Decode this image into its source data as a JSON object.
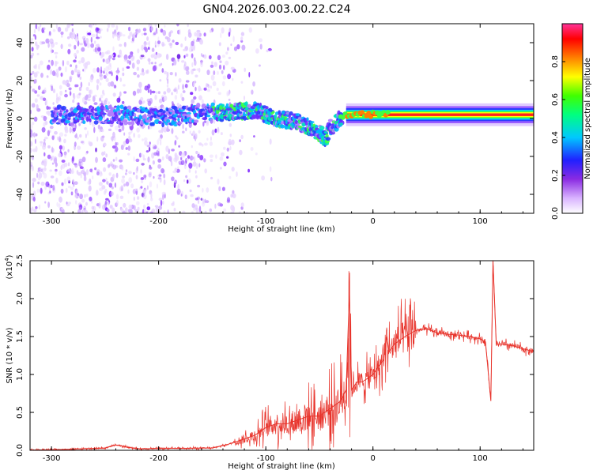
{
  "title": "GN04.2026.003.00.22.C24",
  "colors": {
    "snr_line": "#e8332b",
    "axis": "#000000"
  },
  "chart_data": [
    {
      "type": "heatmap",
      "name": "spectrogram",
      "xlabel": "Height of straight line (km)",
      "ylabel": "Frequency (Hz)",
      "xlim": [
        -320,
        150
      ],
      "ylim": [
        -50,
        50
      ],
      "xticks": [
        "-300",
        "-200",
        "-100",
        "0",
        "100"
      ],
      "xtick_values": [
        -300,
        -200,
        -100,
        0,
        100
      ],
      "yticks": [
        "-40",
        "-20",
        "0",
        "20",
        "40"
      ],
      "ytick_values": [
        -40,
        -20,
        0,
        20,
        40
      ],
      "colorbar": {
        "label": "Normalized spectral amplitude",
        "range": [
          0,
          1
        ],
        "ticks": [
          "0.0",
          "0.2",
          "0.4",
          "0.6",
          "0.8"
        ],
        "tick_values": [
          0,
          0.2,
          0.4,
          0.6,
          0.8
        ]
      },
      "features": {
        "noise_region_x": [
          -320,
          -130
        ],
        "noise_freq_span": [
          -50,
          50
        ],
        "carrier_trace": [
          [
            -290,
            1
          ],
          [
            -250,
            2
          ],
          [
            -200,
            1
          ],
          [
            -150,
            3
          ],
          [
            -110,
            4
          ],
          [
            -90,
            0
          ],
          [
            -70,
            -2
          ],
          [
            -55,
            -6
          ],
          [
            -45,
            -10
          ],
          [
            -40,
            -5
          ],
          [
            -30,
            1
          ],
          [
            -10,
            1
          ],
          [
            0,
            2
          ],
          [
            50,
            2
          ],
          [
            100,
            2
          ],
          [
            150,
            2
          ]
        ],
        "steady_carrier_x": [
          -30,
          150
        ],
        "steady_carrier_freq": 2
      }
    },
    {
      "type": "line",
      "name": "snr",
      "xlabel": "Height of straight line (km)",
      "ylabel": "SNR (10 * v/v)",
      "yscale_label": "(x10",
      "yscale_exp": "4",
      "yscale_close": ")",
      "xlim": [
        -320,
        150
      ],
      "ylim": [
        0,
        25000
      ],
      "xticks": [
        "-300",
        "-200",
        "-100",
        "0",
        "100"
      ],
      "xtick_values": [
        -300,
        -200,
        -100,
        0,
        100
      ],
      "yticks": [
        "0.0",
        "0.5",
        "1.0",
        "1.5",
        "2.0",
        "2.5"
      ],
      "ytick_values": [
        0,
        5000,
        10000,
        15000,
        20000,
        25000
      ],
      "series": [
        {
          "name": "SNR",
          "x": [
            -320,
            -280,
            -250,
            -240,
            -220,
            -190,
            -150,
            -135,
            -120,
            -110,
            -100,
            -90,
            -80,
            -70,
            -60,
            -50,
            -40,
            -30,
            -25,
            -22,
            -20,
            -15,
            -10,
            -5,
            0,
            5,
            10,
            13,
            15,
            20,
            30,
            40,
            50,
            60,
            70,
            80,
            90,
            100,
            105,
            110,
            112,
            115,
            120,
            130,
            140,
            150
          ],
          "y": [
            0,
            150,
            300,
            700,
            200,
            250,
            300,
            800,
            1500,
            2000,
            3000,
            3500,
            3500,
            4000,
            4500,
            4500,
            5500,
            6500,
            8000,
            21000,
            8000,
            9000,
            9000,
            9500,
            10000,
            11000,
            12000,
            15000,
            13000,
            14000,
            15000,
            15800,
            16000,
            15500,
            15300,
            15200,
            15000,
            14700,
            14300,
            6500,
            25000,
            14000,
            14000,
            13800,
            13400,
            13000
          ]
        }
      ]
    }
  ]
}
